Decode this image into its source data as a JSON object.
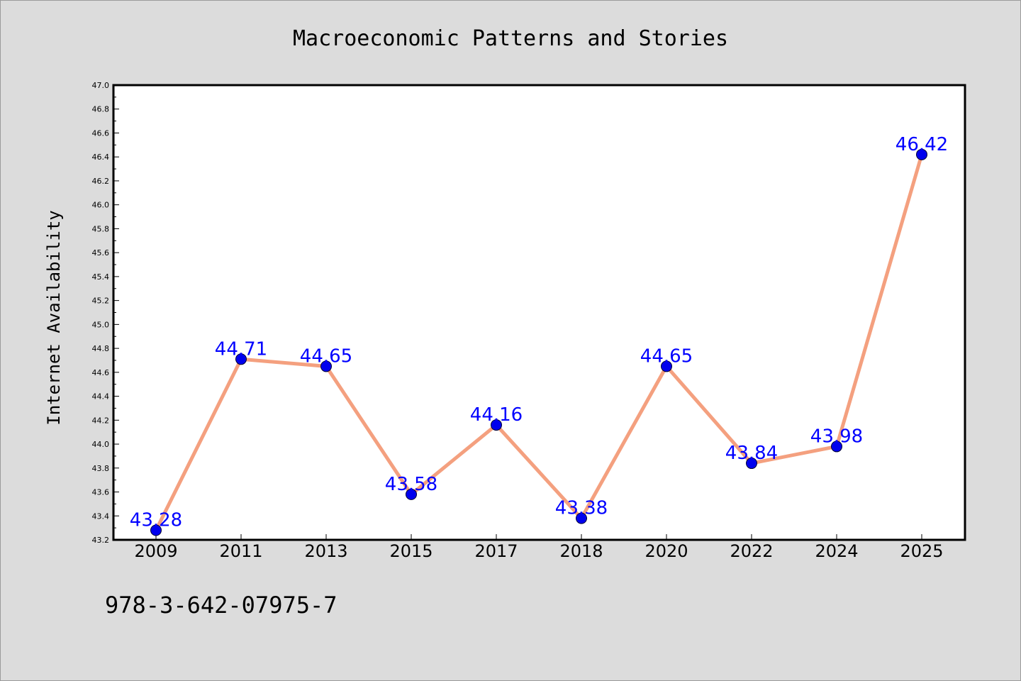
{
  "chart_data": {
    "type": "line",
    "title": "Macroeconomic Patterns and Stories",
    "xlabel": "",
    "ylabel": "Internet Availability",
    "categories": [
      "2009",
      "2011",
      "2013",
      "2015",
      "2017",
      "2018",
      "2020",
      "2022",
      "2024",
      "2025"
    ],
    "series": [
      {
        "values": [
          43.28,
          44.71,
          44.65,
          43.58,
          44.16,
          43.38,
          44.65,
          43.84,
          43.98,
          46.42
        ],
        "data_labels": [
          "43.28",
          "44.71",
          "44.65",
          "43.58",
          "44.16",
          "43.38",
          "44.65",
          "43.84",
          "43.98",
          "46.42"
        ]
      }
    ],
    "ylim": [
      43.2,
      47.0
    ],
    "yticks": [
      "43.2",
      "43.4",
      "43.6",
      "43.8",
      "44.0",
      "44.2",
      "44.4",
      "44.6",
      "44.8",
      "45.0",
      "45.2",
      "45.4",
      "45.6",
      "45.8",
      "46.0",
      "46.2",
      "46.4",
      "46.6",
      "46.8",
      "47.0"
    ],
    "grid": false,
    "legend": "none",
    "colors": {
      "line": "#f4a07f",
      "marker": "#0000ee",
      "label": "#0000ff",
      "plot_bg": "#ffffff",
      "page_bg": "#dcdcdc"
    }
  },
  "footer": {
    "isbn": "978-3-642-07975-7"
  }
}
